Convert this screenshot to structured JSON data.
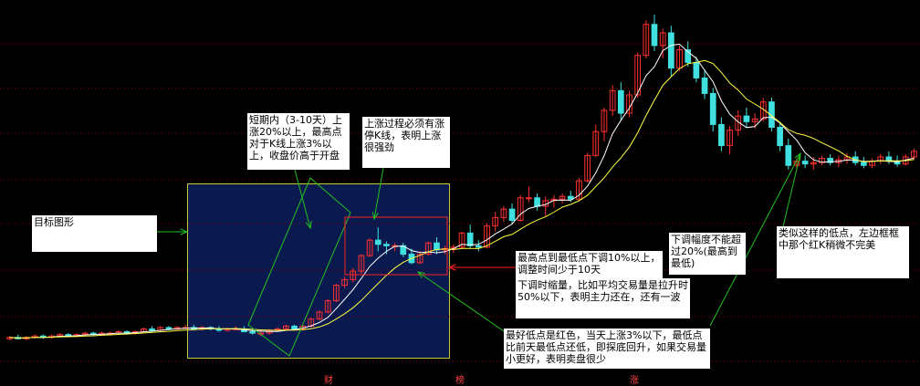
{
  "chart_data": {
    "type": "candlestick",
    "grid": true,
    "legend": "none",
    "candles": [
      {
        "o": 9.6,
        "h": 9.8,
        "l": 9.5,
        "c": 9.7
      },
      {
        "o": 9.7,
        "h": 9.9,
        "l": 9.6,
        "c": 9.6
      },
      {
        "o": 9.6,
        "h": 9.8,
        "l": 9.5,
        "c": 9.7
      },
      {
        "o": 9.7,
        "h": 9.9,
        "l": 9.6,
        "c": 9.8
      },
      {
        "o": 9.8,
        "h": 9.9,
        "l": 9.6,
        "c": 9.7
      },
      {
        "o": 9.7,
        "h": 9.9,
        "l": 9.6,
        "c": 9.8
      },
      {
        "o": 9.8,
        "h": 10.0,
        "l": 9.7,
        "c": 9.9
      },
      {
        "o": 9.9,
        "h": 10.0,
        "l": 9.7,
        "c": 9.8
      },
      {
        "o": 9.8,
        "h": 10.0,
        "l": 9.7,
        "c": 9.9
      },
      {
        "o": 9.9,
        "h": 10.1,
        "l": 9.8,
        "c": 10.0
      },
      {
        "o": 10.0,
        "h": 10.1,
        "l": 9.8,
        "c": 9.9
      },
      {
        "o": 9.9,
        "h": 10.1,
        "l": 9.8,
        "c": 10.0
      },
      {
        "o": 10.0,
        "h": 10.1,
        "l": 9.9,
        "c": 10.0
      },
      {
        "o": 10.0,
        "h": 10.2,
        "l": 9.9,
        "c": 10.1
      },
      {
        "o": 10.1,
        "h": 10.2,
        "l": 9.9,
        "c": 10.0
      },
      {
        "o": 10.0,
        "h": 10.2,
        "l": 9.9,
        "c": 10.1
      },
      {
        "o": 10.1,
        "h": 10.4,
        "l": 10.0,
        "c": 10.3
      },
      {
        "o": 10.3,
        "h": 10.5,
        "l": 10.1,
        "c": 10.2
      },
      {
        "o": 10.2,
        "h": 10.5,
        "l": 10.1,
        "c": 10.4
      },
      {
        "o": 10.4,
        "h": 10.5,
        "l": 10.2,
        "c": 10.3
      },
      {
        "o": 10.3,
        "h": 10.5,
        "l": 10.2,
        "c": 10.4
      },
      {
        "o": 10.4,
        "h": 10.6,
        "l": 10.3,
        "c": 10.4
      },
      {
        "o": 10.4,
        "h": 10.6,
        "l": 10.2,
        "c": 10.3
      },
      {
        "o": 10.3,
        "h": 10.5,
        "l": 10.2,
        "c": 10.4
      },
      {
        "o": 10.4,
        "h": 10.5,
        "l": 10.2,
        "c": 10.3
      },
      {
        "o": 10.3,
        "h": 10.5,
        "l": 10.1,
        "c": 10.2
      },
      {
        "o": 10.2,
        "h": 10.4,
        "l": 10.1,
        "c": 10.3
      },
      {
        "o": 10.3,
        "h": 10.5,
        "l": 10.2,
        "c": 10.3
      },
      {
        "o": 10.3,
        "h": 10.5,
        "l": 10.1,
        "c": 10.1
      },
      {
        "o": 10.1,
        "h": 10.3,
        "l": 9.9,
        "c": 10.0
      },
      {
        "o": 10.0,
        "h": 10.2,
        "l": 9.8,
        "c": 10.0
      },
      {
        "o": 10.0,
        "h": 10.3,
        "l": 9.9,
        "c": 10.2
      },
      {
        "o": 10.2,
        "h": 10.4,
        "l": 10.1,
        "c": 10.3
      },
      {
        "o": 10.3,
        "h": 10.6,
        "l": 10.2,
        "c": 10.5
      },
      {
        "o": 10.5,
        "h": 10.6,
        "l": 10.2,
        "c": 10.3
      },
      {
        "o": 10.3,
        "h": 10.6,
        "l": 10.2,
        "c": 10.5
      },
      {
        "o": 10.5,
        "h": 11.1,
        "l": 10.4,
        "c": 11.0
      },
      {
        "o": 11.0,
        "h": 11.6,
        "l": 10.9,
        "c": 11.5
      },
      {
        "o": 11.5,
        "h": 12.4,
        "l": 11.4,
        "c": 12.3
      },
      {
        "o": 12.3,
        "h": 13.5,
        "l": 12.2,
        "c": 13.4
      },
      {
        "o": 13.4,
        "h": 14.0,
        "l": 13.2,
        "c": 13.8
      },
      {
        "o": 13.8,
        "h": 14.6,
        "l": 13.6,
        "c": 14.4
      },
      {
        "o": 14.4,
        "h": 15.6,
        "l": 14.2,
        "c": 15.5
      },
      {
        "o": 15.5,
        "h": 16.7,
        "l": 15.4,
        "c": 16.6
      },
      {
        "o": 16.6,
        "h": 17.5,
        "l": 15.8,
        "c": 16.3
      },
      {
        "o": 16.3,
        "h": 16.5,
        "l": 15.6,
        "c": 16.2
      },
      {
        "o": 16.2,
        "h": 16.4,
        "l": 15.8,
        "c": 16.2
      },
      {
        "o": 16.2,
        "h": 16.4,
        "l": 15.4,
        "c": 15.6
      },
      {
        "o": 15.6,
        "h": 16.0,
        "l": 14.9,
        "c": 15.0
      },
      {
        "o": 15.0,
        "h": 15.8,
        "l": 14.9,
        "c": 15.6
      },
      {
        "o": 15.6,
        "h": 16.5,
        "l": 15.5,
        "c": 16.4
      },
      {
        "o": 16.4,
        "h": 16.8,
        "l": 15.6,
        "c": 15.9
      },
      {
        "o": 15.9,
        "h": 16.2,
        "l": 15.6,
        "c": 16.0
      },
      {
        "o": 16.0,
        "h": 16.3,
        "l": 15.7,
        "c": 16.1
      },
      {
        "o": 16.1,
        "h": 17.2,
        "l": 16.0,
        "c": 17.1
      },
      {
        "o": 17.1,
        "h": 17.7,
        "l": 16.0,
        "c": 16.2
      },
      {
        "o": 16.2,
        "h": 16.6,
        "l": 15.8,
        "c": 16.1
      },
      {
        "o": 16.1,
        "h": 17.8,
        "l": 16.0,
        "c": 17.6
      },
      {
        "o": 17.6,
        "h": 18.6,
        "l": 17.2,
        "c": 18.2
      },
      {
        "o": 18.2,
        "h": 19.0,
        "l": 17.9,
        "c": 18.8
      },
      {
        "o": 18.8,
        "h": 19.2,
        "l": 17.7,
        "c": 18.0
      },
      {
        "o": 18.0,
        "h": 19.8,
        "l": 17.9,
        "c": 19.6
      },
      {
        "o": 19.6,
        "h": 20.4,
        "l": 19.3,
        "c": 19.6
      },
      {
        "o": 19.6,
        "h": 19.9,
        "l": 18.7,
        "c": 19.0
      },
      {
        "o": 19.0,
        "h": 19.7,
        "l": 18.3,
        "c": 19.4
      },
      {
        "o": 19.4,
        "h": 19.8,
        "l": 18.9,
        "c": 19.5
      },
      {
        "o": 19.5,
        "h": 19.9,
        "l": 19.2,
        "c": 19.7
      },
      {
        "o": 19.7,
        "h": 20.1,
        "l": 19.3,
        "c": 19.5
      },
      {
        "o": 19.5,
        "h": 21.0,
        "l": 19.4,
        "c": 20.8
      },
      {
        "o": 20.8,
        "h": 22.8,
        "l": 20.7,
        "c": 22.6
      },
      {
        "o": 22.6,
        "h": 24.8,
        "l": 22.5,
        "c": 24.3
      },
      {
        "o": 24.3,
        "h": 26.0,
        "l": 23.6,
        "c": 25.8
      },
      {
        "o": 25.8,
        "h": 27.6,
        "l": 25.4,
        "c": 27.2
      },
      {
        "o": 27.2,
        "h": 27.8,
        "l": 25.1,
        "c": 25.6
      },
      {
        "o": 25.6,
        "h": 27.2,
        "l": 25.3,
        "c": 26.9
      },
      {
        "o": 26.9,
        "h": 29.9,
        "l": 26.7,
        "c": 29.7
      },
      {
        "o": 29.7,
        "h": 32.2,
        "l": 29.5,
        "c": 31.9
      },
      {
        "o": 31.9,
        "h": 32.6,
        "l": 30.0,
        "c": 30.4
      },
      {
        "o": 30.4,
        "h": 31.6,
        "l": 29.5,
        "c": 31.3
      },
      {
        "o": 31.3,
        "h": 31.8,
        "l": 28.2,
        "c": 28.8
      },
      {
        "o": 28.8,
        "h": 30.4,
        "l": 28.6,
        "c": 30.1
      },
      {
        "o": 30.1,
        "h": 30.7,
        "l": 28.9,
        "c": 29.2
      },
      {
        "o": 29.2,
        "h": 29.6,
        "l": 27.8,
        "c": 28.1
      },
      {
        "o": 28.1,
        "h": 28.7,
        "l": 26.6,
        "c": 27.0
      },
      {
        "o": 27.0,
        "h": 27.4,
        "l": 24.3,
        "c": 24.8
      },
      {
        "o": 24.8,
        "h": 25.3,
        "l": 22.9,
        "c": 23.3
      },
      {
        "o": 23.3,
        "h": 24.7,
        "l": 22.7,
        "c": 24.4
      },
      {
        "o": 24.4,
        "h": 25.8,
        "l": 24.0,
        "c": 25.4
      },
      {
        "o": 25.4,
        "h": 26.0,
        "l": 24.6,
        "c": 25.0
      },
      {
        "o": 25.0,
        "h": 25.6,
        "l": 24.5,
        "c": 25.2
      },
      {
        "o": 25.2,
        "h": 26.7,
        "l": 25.0,
        "c": 26.4
      },
      {
        "o": 26.4,
        "h": 26.7,
        "l": 24.3,
        "c": 24.6
      },
      {
        "o": 24.6,
        "h": 25.0,
        "l": 22.9,
        "c": 23.3
      },
      {
        "o": 23.3,
        "h": 23.8,
        "l": 21.6,
        "c": 21.9
      },
      {
        "o": 21.9,
        "h": 22.4,
        "l": 21.6,
        "c": 22.2
      },
      {
        "o": 22.2,
        "h": 22.6,
        "l": 21.7,
        "c": 22.0
      },
      {
        "o": 22.0,
        "h": 22.5,
        "l": 21.6,
        "c": 22.1
      },
      {
        "o": 22.1,
        "h": 22.6,
        "l": 21.9,
        "c": 22.4
      },
      {
        "o": 22.4,
        "h": 22.7,
        "l": 21.9,
        "c": 22.1
      },
      {
        "o": 22.1,
        "h": 22.6,
        "l": 21.8,
        "c": 22.3
      },
      {
        "o": 22.3,
        "h": 22.8,
        "l": 22.0,
        "c": 22.5
      },
      {
        "o": 22.5,
        "h": 22.9,
        "l": 21.9,
        "c": 22.1
      },
      {
        "o": 22.1,
        "h": 22.5,
        "l": 21.7,
        "c": 21.9
      },
      {
        "o": 21.9,
        "h": 22.4,
        "l": 21.7,
        "c": 22.2
      },
      {
        "o": 22.2,
        "h": 22.7,
        "l": 22.0,
        "c": 22.5
      },
      {
        "o": 22.5,
        "h": 22.9,
        "l": 22.0,
        "c": 22.2
      },
      {
        "o": 22.2,
        "h": 22.6,
        "l": 21.8,
        "c": 22.0
      },
      {
        "o": 22.0,
        "h": 22.7,
        "l": 21.9,
        "c": 22.5
      },
      {
        "o": 22.5,
        "h": 23.1,
        "l": 22.3,
        "c": 22.9
      }
    ],
    "colors": {
      "up": "#ff3030",
      "down": "#40e0e0",
      "ma_short": "#ffffff",
      "ma_long": "#ffff40",
      "grid": "#8b0000",
      "arrow": "#20c020",
      "target_border": "#c8c830",
      "target_bg": "#0a1a4e"
    },
    "annotations": [
      {
        "id": "target",
        "text": "目标图形"
      },
      {
        "id": "rise",
        "text": "短期内（3-10天）上涨20%以上，最高点对于K线上涨3%以上，收盘价高于开盘"
      },
      {
        "id": "limit",
        "text": "上涨过程必须有涨停K线，表明上涨很强劲"
      },
      {
        "id": "pullback",
        "text": "最高点到最低点下调10%以上，调整时间少于10天"
      },
      {
        "id": "volume",
        "text": "下调时缩量，比如平均交易量是拉升时50%以下，表明主力还在，还有一波"
      },
      {
        "id": "drop",
        "text": "下调幅度不能超过20%(最高到最低)"
      },
      {
        "id": "similar",
        "text": "类似这样的低点，左边框框中那个红K稍微不完美"
      },
      {
        "id": "best",
        "text": "最好低点是红色，当天上涨3%以下，最低点比前天最低点还低，即探底回升，如果交易量小更好，表明卖盘很少"
      }
    ],
    "x_labels": [
      "财",
      "榜",
      "涨"
    ]
  }
}
